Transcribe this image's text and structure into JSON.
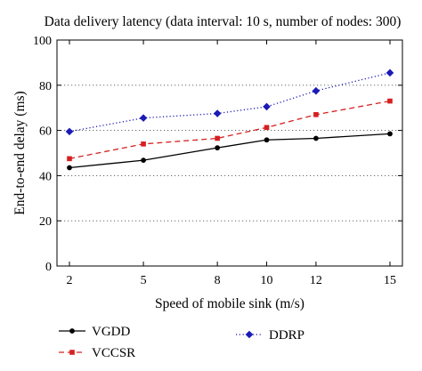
{
  "chart_data": {
    "type": "line",
    "title": "Data delivery latency (data interval: 10 s, number of nodes: 300)",
    "xlabel": "Speed of mobile sink (m/s)",
    "ylabel": "End-to-end delay (ms)",
    "x": [
      2,
      5,
      8,
      10,
      12,
      15
    ],
    "x_ticks": [
      "2",
      "5",
      "8",
      "10",
      "12",
      "15"
    ],
    "ylim": [
      0,
      100
    ],
    "y_ticks": [
      0,
      20,
      40,
      60,
      80,
      100
    ],
    "y_tick_labels": [
      "0",
      "20",
      "40",
      "60",
      "80",
      "100"
    ],
    "grid": "horizontal dotted",
    "legend_position": "bottom",
    "series": [
      {
        "name": "VGDD",
        "values": [
          43.5,
          46.8,
          52.3,
          55.8,
          56.5,
          58.5
        ],
        "color": "#000000",
        "line": "solid",
        "marker": "circle"
      },
      {
        "name": "VCCSR",
        "values": [
          47.5,
          54.0,
          56.5,
          61.3,
          67.0,
          73.0
        ],
        "color": "#d62020",
        "line": "dashed",
        "marker": "square"
      },
      {
        "name": "DDRP",
        "values": [
          59.5,
          65.5,
          67.5,
          70.5,
          77.5,
          85.5
        ],
        "color": "#1a1ab4",
        "line": "dotted",
        "marker": "diamond"
      }
    ]
  }
}
